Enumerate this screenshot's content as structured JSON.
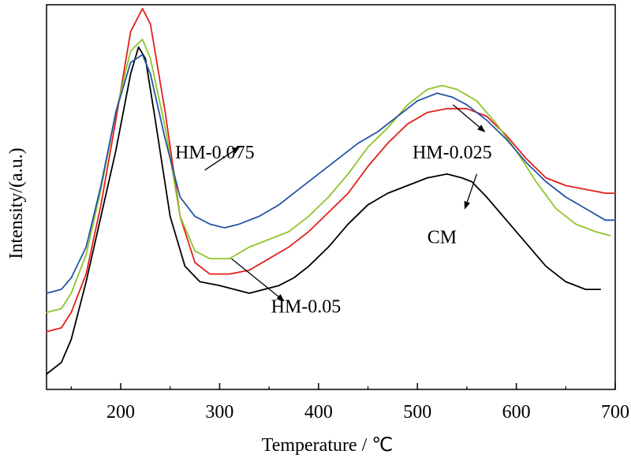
{
  "chart_data": {
    "type": "line",
    "title": "",
    "xlabel": "Temperature / ℃",
    "ylabel": "Intensity/(a.u.)",
    "xlim": [
      125,
      700
    ],
    "ylim": [
      0,
      100
    ],
    "xticks": [
      200,
      300,
      400,
      500,
      600,
      700
    ],
    "y_ticks_labeled": false,
    "grid": false,
    "legend": "none",
    "series": [
      {
        "name": "CM",
        "color": "#000000",
        "x": [
          125,
          140,
          150,
          165,
          180,
          195,
          210,
          218,
          225,
          235,
          250,
          265,
          280,
          300,
          315,
          330,
          345,
          360,
          375,
          390,
          410,
          430,
          450,
          470,
          490,
          510,
          530,
          545,
          555,
          570,
          590,
          610,
          630,
          650,
          670,
          685
        ],
        "y": [
          4,
          7,
          13,
          28,
          45,
          62,
          82,
          89,
          86,
          70,
          45,
          32,
          28,
          27,
          26,
          25,
          26,
          27,
          29,
          32,
          37,
          43,
          48,
          51,
          53,
          55,
          56,
          55,
          54,
          50,
          44,
          38,
          32,
          28,
          26,
          26
        ]
      },
      {
        "name": "HM-0.025",
        "color": "#e0201a",
        "x": [
          125,
          140,
          150,
          165,
          180,
          195,
          210,
          222,
          230,
          245,
          260,
          275,
          290,
          310,
          330,
          350,
          370,
          390,
          410,
          430,
          450,
          470,
          490,
          510,
          530,
          550,
          570,
          590,
          610,
          630,
          650,
          670,
          690,
          700
        ],
        "y": [
          15,
          16,
          20,
          30,
          48,
          70,
          93,
          99,
          95,
          72,
          45,
          33,
          30,
          30,
          31,
          34,
          37,
          41,
          46,
          51,
          58,
          64,
          69,
          72,
          73,
          73,
          71,
          66,
          60,
          55,
          53,
          52,
          51,
          51
        ]
      },
      {
        "name": "HM-0.05",
        "color": "#8fc42a",
        "x": [
          125,
          140,
          150,
          165,
          180,
          195,
          210,
          222,
          230,
          245,
          260,
          275,
          290,
          310,
          330,
          350,
          370,
          390,
          410,
          430,
          450,
          470,
          490,
          510,
          525,
          540,
          560,
          580,
          600,
          620,
          640,
          660,
          680,
          695
        ],
        "y": [
          20,
          21,
          25,
          35,
          52,
          72,
          88,
          91,
          86,
          68,
          45,
          36,
          34,
          34,
          37,
          39,
          41,
          45,
          50,
          56,
          63,
          68,
          74,
          78,
          79,
          78,
          75,
          69,
          62,
          54,
          47,
          43,
          41,
          40
        ]
      },
      {
        "name": "HM-0.075",
        "color": "#2455a4",
        "x": [
          125,
          140,
          150,
          165,
          180,
          195,
          210,
          222,
          230,
          245,
          260,
          275,
          290,
          305,
          320,
          340,
          360,
          380,
          400,
          420,
          440,
          460,
          480,
          500,
          520,
          535,
          550,
          570,
          590,
          610,
          630,
          650,
          670,
          690,
          700
        ],
        "y": [
          25,
          26,
          29,
          37,
          53,
          72,
          85,
          87,
          82,
          65,
          50,
          45,
          43,
          42,
          43,
          45,
          48,
          52,
          56,
          60,
          64,
          67,
          71,
          75,
          77,
          76,
          74,
          70,
          65,
          59,
          54,
          50,
          47,
          44,
          44
        ]
      }
    ],
    "annotations": [
      {
        "text": "HM-0.075",
        "label_x": 255,
        "label_y": 60,
        "arrow_to": [
          320,
          60
        ]
      },
      {
        "text": "HM-0.025",
        "label_x": 495,
        "label_y": 60,
        "arrow_to": [
          565,
          68
        ]
      },
      {
        "text": "CM",
        "label_x": 510,
        "label_y": 38,
        "arrow_to": [
          560,
          56
        ]
      },
      {
        "text": "HM-0.05",
        "label_x": 352,
        "label_y": 20,
        "arrow_to": [
          310,
          35
        ]
      }
    ]
  }
}
